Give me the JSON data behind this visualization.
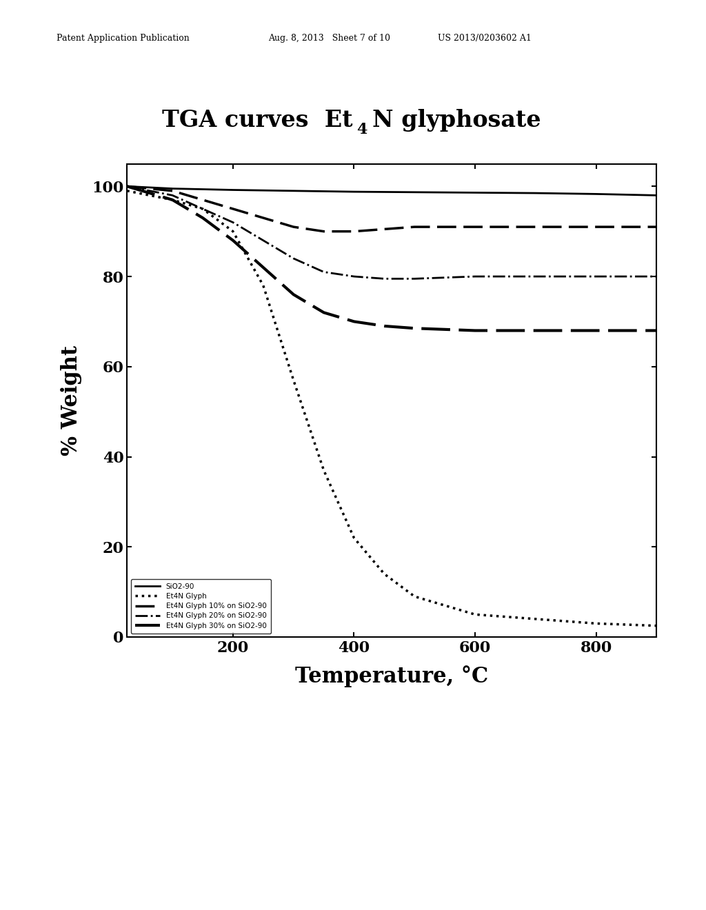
{
  "title_main": "TGA curves  Et",
  "title_sub": "4",
  "title_end": "N glyphosate",
  "xlabel": "Temperature, °C",
  "ylabel": "% Weight",
  "xlim": [
    25,
    900
  ],
  "ylim": [
    0,
    105
  ],
  "xticks": [
    200,
    400,
    600,
    800
  ],
  "yticks": [
    0,
    20,
    40,
    60,
    80,
    100
  ],
  "header_left": "Patent Application Publication",
  "header_mid": "Aug. 8, 2013   Sheet 7 of 10",
  "header_right": "US 2013/0203602 A1",
  "legend_labels": [
    "SiO2-90",
    "Et4N Glyph",
    "Et4N Glyph 10% on SiO2-90",
    "Et4N Glyph 20% on SiO2-90",
    "Et4N Glyph 30% on SiO2-90"
  ],
  "curve_SiO2_x": [
    25,
    100,
    200,
    300,
    400,
    500,
    600,
    700,
    800,
    900
  ],
  "curve_SiO2_y": [
    100,
    99.5,
    99.2,
    99.0,
    98.8,
    98.7,
    98.6,
    98.5,
    98.3,
    98.0
  ],
  "curve_Et4N_x": [
    25,
    100,
    150,
    200,
    250,
    300,
    350,
    400,
    450,
    500,
    550,
    600,
    700,
    800,
    900
  ],
  "curve_Et4N_y": [
    99,
    97,
    95,
    90,
    78,
    57,
    37,
    22,
    14,
    9,
    7,
    5,
    4,
    3,
    2.5
  ],
  "curve_10pct_x": [
    25,
    100,
    150,
    200,
    250,
    300,
    350,
    400,
    450,
    500,
    600,
    700,
    800,
    900
  ],
  "curve_10pct_y": [
    100,
    99,
    97,
    95,
    93,
    91,
    90,
    90,
    90.5,
    91,
    91,
    91,
    91,
    91
  ],
  "curve_20pct_x": [
    25,
    100,
    150,
    200,
    250,
    300,
    350,
    400,
    450,
    500,
    600,
    700,
    800,
    900
  ],
  "curve_20pct_y": [
    100,
    98,
    95,
    92,
    88,
    84,
    81,
    80,
    79.5,
    79.5,
    80,
    80,
    80,
    80
  ],
  "curve_30pct_x": [
    25,
    100,
    150,
    200,
    250,
    300,
    350,
    400,
    450,
    500,
    600,
    700,
    800,
    900
  ],
  "curve_30pct_y": [
    100,
    97,
    93,
    88,
    82,
    76,
    72,
    70,
    69,
    68.5,
    68,
    68,
    68,
    68
  ],
  "bg_color": "#ffffff",
  "line_color": "#000000"
}
